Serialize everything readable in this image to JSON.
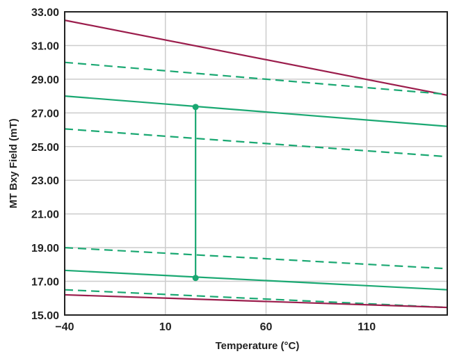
{
  "chart_data": {
    "type": "line",
    "title": "",
    "xlabel": "Temperature (°C)",
    "ylabel": "MT Bxy Field (mT)",
    "xlim": [
      -40,
      150
    ],
    "ylim": [
      15,
      33
    ],
    "xticks": [
      -40,
      10,
      60,
      110
    ],
    "xtick_labels": [
      "−40",
      "10",
      "60",
      "110"
    ],
    "yticks": [
      15,
      17,
      19,
      21,
      23,
      25,
      27,
      29,
      31,
      33
    ],
    "ytick_labels": [
      "15.00",
      "17.00",
      "19.00",
      "21.00",
      "23.00",
      "25.00",
      "27.00",
      "29.00",
      "31.00",
      "33.00"
    ],
    "grid": true,
    "colors": {
      "limit": "#9b1d4c",
      "series": "#1aa872",
      "grid": "#cccccc",
      "axis": "#222222"
    },
    "series": [
      {
        "style": "solid",
        "color": "limit",
        "x": [
          -40,
          150
        ],
        "y": [
          32.5,
          28.05
        ]
      },
      {
        "style": "dashed",
        "color": "series",
        "x": [
          -40,
          150
        ],
        "y": [
          30.0,
          28.1
        ]
      },
      {
        "style": "solid",
        "color": "series",
        "x": [
          -40,
          150
        ],
        "y": [
          28.0,
          26.2
        ]
      },
      {
        "style": "dashed",
        "color": "series",
        "x": [
          -40,
          150
        ],
        "y": [
          26.05,
          24.4
        ]
      },
      {
        "style": "dashed",
        "color": "series",
        "x": [
          -40,
          150
        ],
        "y": [
          19.0,
          17.75
        ]
      },
      {
        "style": "solid",
        "color": "series",
        "x": [
          -40,
          150
        ],
        "y": [
          17.65,
          16.5
        ]
      },
      {
        "style": "dashed",
        "color": "series",
        "x": [
          -40,
          150
        ],
        "y": [
          16.5,
          15.45
        ]
      },
      {
        "style": "solid",
        "color": "limit",
        "x": [
          -40,
          150
        ],
        "y": [
          16.2,
          15.45
        ]
      }
    ],
    "range_marker": {
      "x": 25,
      "y": [
        17.2,
        27.35
      ],
      "color": "series"
    }
  }
}
